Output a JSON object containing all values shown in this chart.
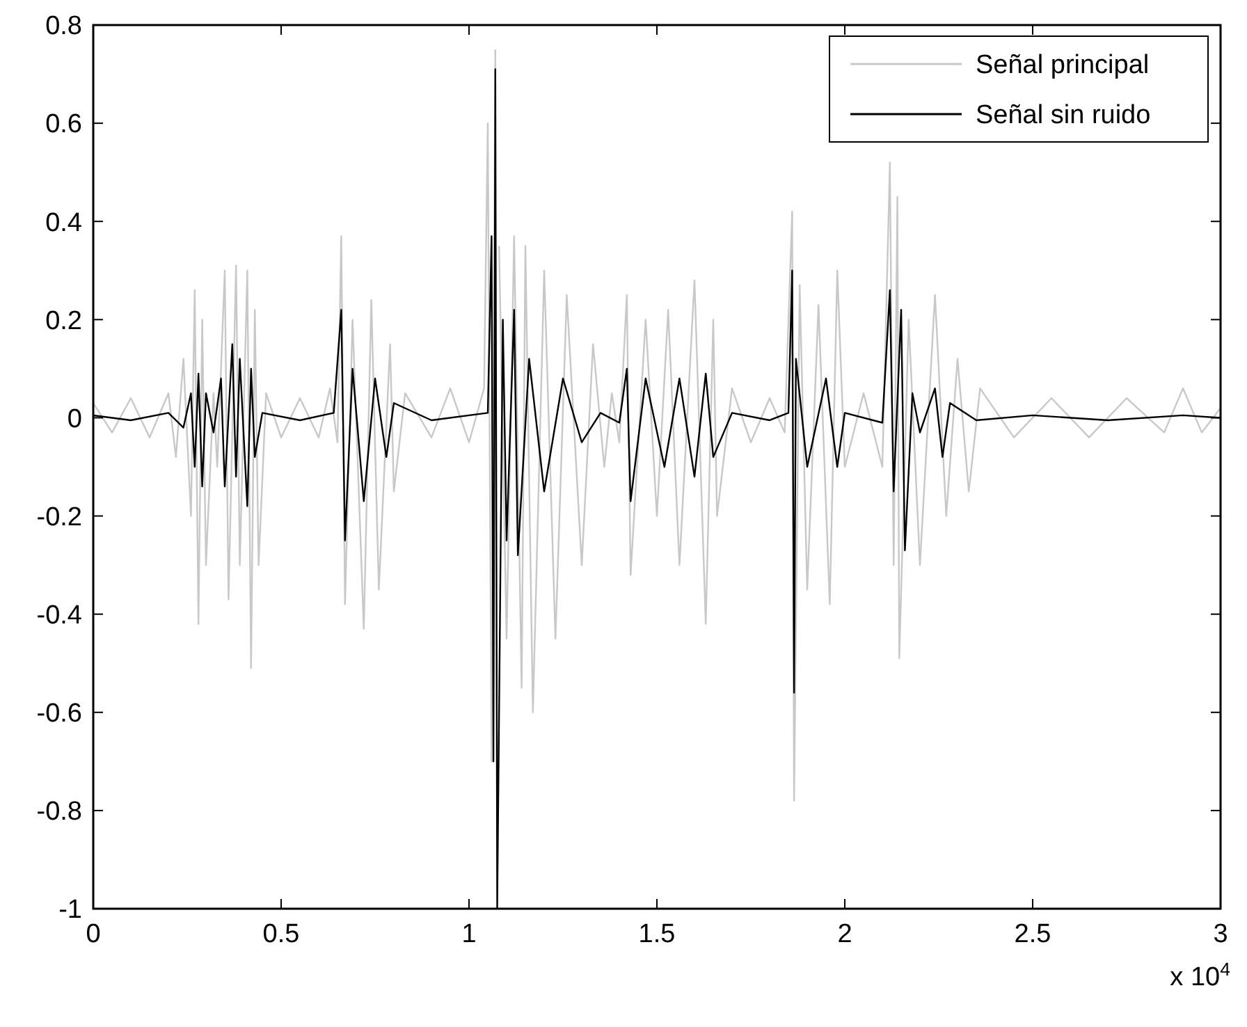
{
  "chart_data": {
    "type": "line",
    "xlim": [
      0,
      3
    ],
    "xticks": [
      0,
      0.5,
      1,
      1.5,
      2,
      2.5,
      3
    ],
    "ylim": [
      -1,
      0.8
    ],
    "yticks": [
      -1,
      -0.8,
      -0.6,
      -0.4,
      -0.2,
      0,
      0.2,
      0.4,
      0.6,
      0.8
    ],
    "legend": "top right",
    "grid": false,
    "annotations": [
      "x 10$^{4}$"
    ],
    "series": [
      {
        "name": "Señal principal",
        "color": "#c8c8c8",
        "x": [
          0,
          0.05,
          0.1,
          0.15,
          0.2,
          0.22,
          0.24,
          0.26,
          0.27,
          0.28,
          0.29,
          0.3,
          0.32,
          0.33,
          0.35,
          0.36,
          0.38,
          0.39,
          0.41,
          0.42,
          0.43,
          0.44,
          0.46,
          0.5,
          0.55,
          0.6,
          0.63,
          0.65,
          0.66,
          0.67,
          0.69,
          0.72,
          0.74,
          0.76,
          0.79,
          0.8,
          0.83,
          0.9,
          0.95,
          1.0,
          1.04,
          1.05,
          1.06,
          1.07,
          1.075,
          1.08,
          1.1,
          1.12,
          1.14,
          1.15,
          1.17,
          1.2,
          1.23,
          1.26,
          1.3,
          1.33,
          1.36,
          1.38,
          1.4,
          1.42,
          1.43,
          1.47,
          1.5,
          1.53,
          1.56,
          1.6,
          1.63,
          1.65,
          1.66,
          1.7,
          1.75,
          1.8,
          1.84,
          1.86,
          1.865,
          1.88,
          1.9,
          1.93,
          1.96,
          1.98,
          2.0,
          2.05,
          2.1,
          2.12,
          2.13,
          2.14,
          2.145,
          2.17,
          2.2,
          2.24,
          2.27,
          2.3,
          2.33,
          2.36,
          2.45,
          2.55,
          2.65,
          2.75,
          2.85,
          2.9,
          2.95,
          3.0
        ],
        "values": [
          0.03,
          -0.03,
          0.04,
          -0.04,
          0.05,
          -0.08,
          0.12,
          -0.2,
          0.26,
          -0.42,
          0.2,
          -0.3,
          0.05,
          -0.1,
          0.3,
          -0.37,
          0.31,
          -0.3,
          0.3,
          -0.51,
          0.22,
          -0.3,
          0.05,
          -0.04,
          0.04,
          -0.04,
          0.06,
          -0.05,
          0.37,
          -0.38,
          0.2,
          -0.43,
          0.24,
          -0.35,
          0.15,
          -0.15,
          0.05,
          -0.04,
          0.06,
          -0.05,
          0.06,
          0.6,
          -0.7,
          0.75,
          null,
          0.35,
          -0.45,
          0.37,
          -0.55,
          0.35,
          -0.6,
          0.3,
          -0.45,
          0.25,
          -0.3,
          0.15,
          -0.1,
          0.05,
          -0.05,
          0.25,
          -0.32,
          0.2,
          -0.2,
          0.22,
          -0.3,
          0.28,
          -0.42,
          0.2,
          -0.2,
          0.06,
          -0.05,
          0.04,
          -0.03,
          0.42,
          -0.78,
          0.27,
          -0.35,
          0.23,
          -0.38,
          0.3,
          -0.1,
          0.05,
          -0.1,
          0.52,
          -0.3,
          0.45,
          -0.49,
          0.2,
          -0.3,
          0.25,
          -0.2,
          0.12,
          -0.15,
          0.06,
          -0.04,
          0.04,
          -0.04,
          0.04,
          -0.03,
          0.06,
          -0.03,
          0.02
        ]
      },
      {
        "name": "Señal sin ruido",
        "color": "#000000",
        "x": [
          0,
          0.1,
          0.2,
          0.24,
          0.26,
          0.27,
          0.28,
          0.29,
          0.3,
          0.32,
          0.34,
          0.35,
          0.37,
          0.38,
          0.39,
          0.41,
          0.42,
          0.43,
          0.45,
          0.55,
          0.64,
          0.66,
          0.67,
          0.69,
          0.72,
          0.75,
          0.78,
          0.8,
          0.9,
          1.05,
          1.06,
          1.065,
          1.07,
          1.075,
          1.09,
          1.1,
          1.12,
          1.13,
          1.16,
          1.2,
          1.25,
          1.3,
          1.35,
          1.4,
          1.42,
          1.43,
          1.47,
          1.52,
          1.56,
          1.6,
          1.63,
          1.65,
          1.7,
          1.8,
          1.85,
          1.86,
          1.865,
          1.87,
          1.9,
          1.95,
          1.98,
          2.0,
          2.1,
          2.12,
          2.13,
          2.15,
          2.16,
          2.18,
          2.2,
          2.24,
          2.26,
          2.28,
          2.35,
          2.5,
          2.7,
          2.9,
          3.0
        ],
        "values": [
          0.005,
          -0.005,
          0.01,
          -0.02,
          0.05,
          -0.1,
          0.09,
          -0.14,
          0.05,
          -0.03,
          0.08,
          -0.14,
          0.15,
          -0.12,
          0.12,
          -0.18,
          0.1,
          -0.08,
          0.01,
          -0.005,
          0.01,
          0.22,
          -0.25,
          0.1,
          -0.17,
          0.08,
          -0.08,
          0.03,
          -0.005,
          0.01,
          0.37,
          -0.7,
          0.71,
          -1.0,
          0.2,
          -0.25,
          0.22,
          -0.28,
          0.12,
          -0.15,
          0.08,
          -0.05,
          0.01,
          -0.01,
          0.1,
          -0.17,
          0.08,
          -0.1,
          0.08,
          -0.12,
          0.09,
          -0.08,
          0.01,
          -0.005,
          0.01,
          0.3,
          -0.56,
          0.12,
          -0.1,
          0.08,
          -0.1,
          0.01,
          -0.01,
          0.26,
          -0.15,
          0.22,
          -0.27,
          0.05,
          -0.03,
          0.06,
          -0.08,
          0.03,
          -0.005,
          0.005,
          -0.005,
          0.005,
          0
        ]
      }
    ]
  }
}
